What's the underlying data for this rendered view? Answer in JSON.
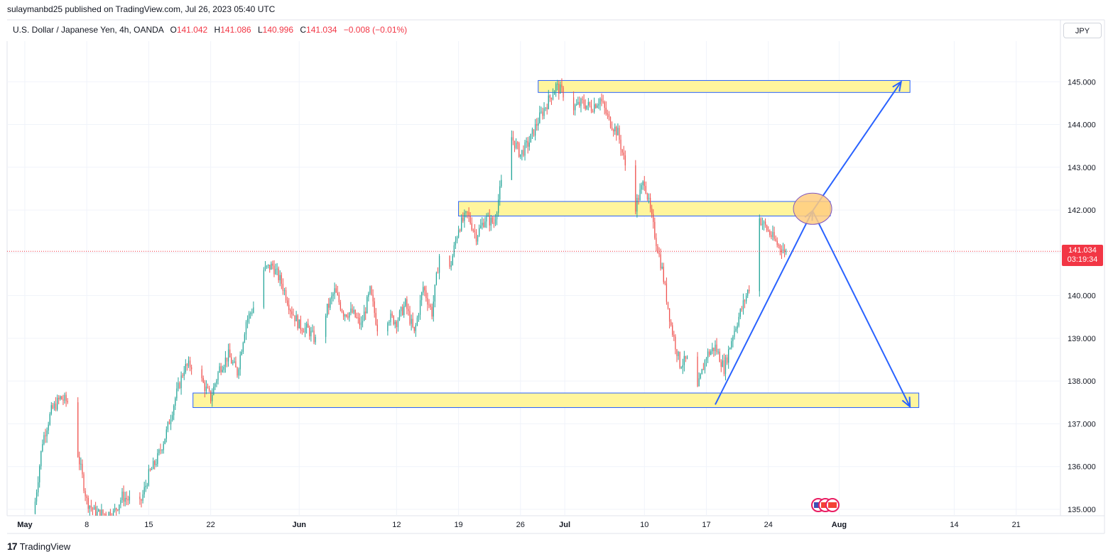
{
  "header": {
    "publisher_line": "sulaymanbd25 published on TradingView.com, Jul 26, 2023 05:40 UTC"
  },
  "legend": {
    "symbol": "U.S. Dollar / Japanese Yen, 4h, OANDA",
    "open_label": "O",
    "open": "141.042",
    "high_label": "H",
    "high": "141.086",
    "low_label": "L",
    "low": "140.996",
    "close_label": "C",
    "close": "141.034",
    "change": "−0.008 (−0.01%)"
  },
  "currency_button": "JPY",
  "price_tag": {
    "price": "141.034",
    "countdown": "03:19:34"
  },
  "footer": {
    "logo_text": "17",
    "brand": "TradingView"
  },
  "colors": {
    "up": "#26a69a",
    "down": "#ef5350",
    "zone_fill": "#fff59d",
    "zone_stroke": "#2962ff",
    "arrow": "#2962ff",
    "circle_fill": "#ffcc80",
    "circle_stroke": "#7e57c2",
    "last_price_line": "#f23645"
  },
  "chart_data": {
    "type": "candlestick",
    "title": "U.S. Dollar / Japanese Yen, 4h, OANDA",
    "y_axis": {
      "ticks": [
        135.0,
        136.0,
        137.0,
        138.0,
        139.0,
        140.0,
        141.0,
        142.0,
        143.0,
        144.0,
        145.0
      ],
      "tick_labels": [
        "135.000",
        "136.000",
        "137.000",
        "138.000",
        "139.000",
        "140.000",
        "141.000",
        "142.000",
        "143.000",
        "144.000",
        "145.000"
      ],
      "ylim": [
        134.85,
        145.95
      ]
    },
    "x_axis": {
      "tick_labels": [
        "May",
        "8",
        "15",
        "22",
        "Jun",
        "12",
        "19",
        "26",
        "Jul",
        "10",
        "17",
        "24",
        "Aug",
        "14",
        "21"
      ],
      "tick_dates": [
        "2023-05-01",
        "2023-05-08",
        "2023-05-15",
        "2023-05-22",
        "2023-06-01",
        "2023-06-12",
        "2023-06-19",
        "2023-06-26",
        "2023-07-01",
        "2023-07-10",
        "2023-07-17",
        "2023-07-24",
        "2023-08-01",
        "2023-08-14",
        "2023-08-21"
      ],
      "bold_labels": [
        "May",
        "Jun",
        "Jul",
        "Aug"
      ],
      "range": [
        "2023-04-29",
        "2023-08-26"
      ]
    },
    "price_path": [
      [
        "2023-05-02",
        134.9
      ],
      [
        "2023-05-03",
        136.6
      ],
      [
        "2023-05-04",
        137.3
      ],
      [
        "2023-05-05",
        137.6
      ],
      [
        "2023-05-06",
        137.5
      ],
      [
        "2023-05-07",
        136.3
      ],
      [
        "2023-05-08",
        135.2
      ],
      [
        "2023-05-09",
        134.9
      ],
      [
        "2023-05-11",
        134.9
      ],
      [
        "2023-05-12",
        135.3
      ],
      [
        "2023-05-14",
        135.1
      ],
      [
        "2023-05-15",
        135.8
      ],
      [
        "2023-05-16",
        136.2
      ],
      [
        "2023-05-17",
        136.8
      ],
      [
        "2023-05-18",
        137.6
      ],
      [
        "2023-05-19",
        138.3
      ],
      [
        "2023-05-20",
        138.4
      ],
      [
        "2023-05-21",
        138.0
      ],
      [
        "2023-05-22",
        137.6
      ],
      [
        "2023-05-23",
        138.3
      ],
      [
        "2023-05-24",
        138.6
      ],
      [
        "2023-05-25",
        138.2
      ],
      [
        "2023-05-26",
        139.4
      ],
      [
        "2023-05-27",
        139.8
      ],
      [
        "2023-05-28",
        140.6
      ],
      [
        "2023-05-29",
        140.7
      ],
      [
        "2023-05-30",
        140.3
      ],
      [
        "2023-05-31",
        139.7
      ],
      [
        "2023-06-01",
        139.3
      ],
      [
        "2023-06-02",
        139.2
      ],
      [
        "2023-06-03",
        138.9
      ],
      [
        "2023-06-04",
        139.6
      ],
      [
        "2023-06-05",
        140.1
      ],
      [
        "2023-06-06",
        139.6
      ],
      [
        "2023-06-07",
        139.6
      ],
      [
        "2023-06-08",
        139.3
      ],
      [
        "2023-06-09",
        140.1
      ],
      [
        "2023-06-10",
        139.1
      ],
      [
        "2023-06-11",
        139.5
      ],
      [
        "2023-06-12",
        139.4
      ],
      [
        "2023-06-13",
        139.8
      ],
      [
        "2023-06-14",
        139.1
      ],
      [
        "2023-06-15",
        140.2
      ],
      [
        "2023-06-16",
        139.6
      ],
      [
        "2023-06-17",
        141.2
      ],
      [
        "2023-06-18",
        140.6
      ],
      [
        "2023-06-19",
        141.6
      ],
      [
        "2023-06-20",
        141.9
      ],
      [
        "2023-06-21",
        141.4
      ],
      [
        "2023-06-22",
        141.8
      ],
      [
        "2023-06-23",
        141.7
      ],
      [
        "2023-06-24",
        142.8
      ],
      [
        "2023-06-25",
        143.7
      ],
      [
        "2023-06-26",
        143.3
      ],
      [
        "2023-06-27",
        143.6
      ],
      [
        "2023-06-28",
        144.1
      ],
      [
        "2023-06-29",
        144.5
      ],
      [
        "2023-06-30",
        144.9
      ],
      [
        "2023-07-01",
        144.7
      ],
      [
        "2023-07-02",
        144.4
      ],
      [
        "2023-07-03",
        144.5
      ],
      [
        "2023-07-04",
        144.4
      ],
      [
        "2023-07-05",
        144.6
      ],
      [
        "2023-07-06",
        144.1
      ],
      [
        "2023-07-07",
        143.8
      ],
      [
        "2023-07-08",
        142.9
      ],
      [
        "2023-07-09",
        142.1
      ],
      [
        "2023-07-10",
        142.7
      ],
      [
        "2023-07-11",
        141.6
      ],
      [
        "2023-07-12",
        140.6
      ],
      [
        "2023-07-13",
        139.3
      ],
      [
        "2023-07-14",
        138.4
      ],
      [
        "2023-07-15",
        138.5
      ],
      [
        "2023-07-16",
        137.8
      ],
      [
        "2023-07-17",
        138.6
      ],
      [
        "2023-07-18",
        138.8
      ],
      [
        "2023-07-19",
        138.3
      ],
      [
        "2023-07-20",
        139.1
      ],
      [
        "2023-07-21",
        139.7
      ],
      [
        "2023-07-22",
        140.3
      ],
      [
        "2023-07-23",
        141.8
      ],
      [
        "2023-07-24",
        141.5
      ],
      [
        "2023-07-25",
        141.2
      ],
      [
        "2023-07-26",
        141.034
      ]
    ],
    "last_price": 141.034,
    "zones": [
      {
        "from": "2023-06-28",
        "to": "2023-08-09",
        "low": 144.75,
        "high": 145.03
      },
      {
        "from": "2023-06-19",
        "to": "2023-07-31",
        "low": 141.86,
        "high": 142.2
      },
      {
        "from": "2023-05-20",
        "to": "2023-08-10",
        "low": 137.38,
        "high": 137.72
      }
    ],
    "arrows": [
      {
        "from_date": "2023-07-18",
        "from_price": 137.45,
        "to_date": "2023-07-29",
        "to_price": 141.98
      },
      {
        "from_date": "2023-07-29",
        "from_price": 141.98,
        "to_date": "2023-08-08",
        "to_price": 145.0
      },
      {
        "from_date": "2023-07-29",
        "from_price": 141.98,
        "to_date": "2023-08-09",
        "to_price": 137.4
      }
    ],
    "highlight_circle": {
      "date": "2023-07-29",
      "price": 142.03
    },
    "grid": true
  }
}
